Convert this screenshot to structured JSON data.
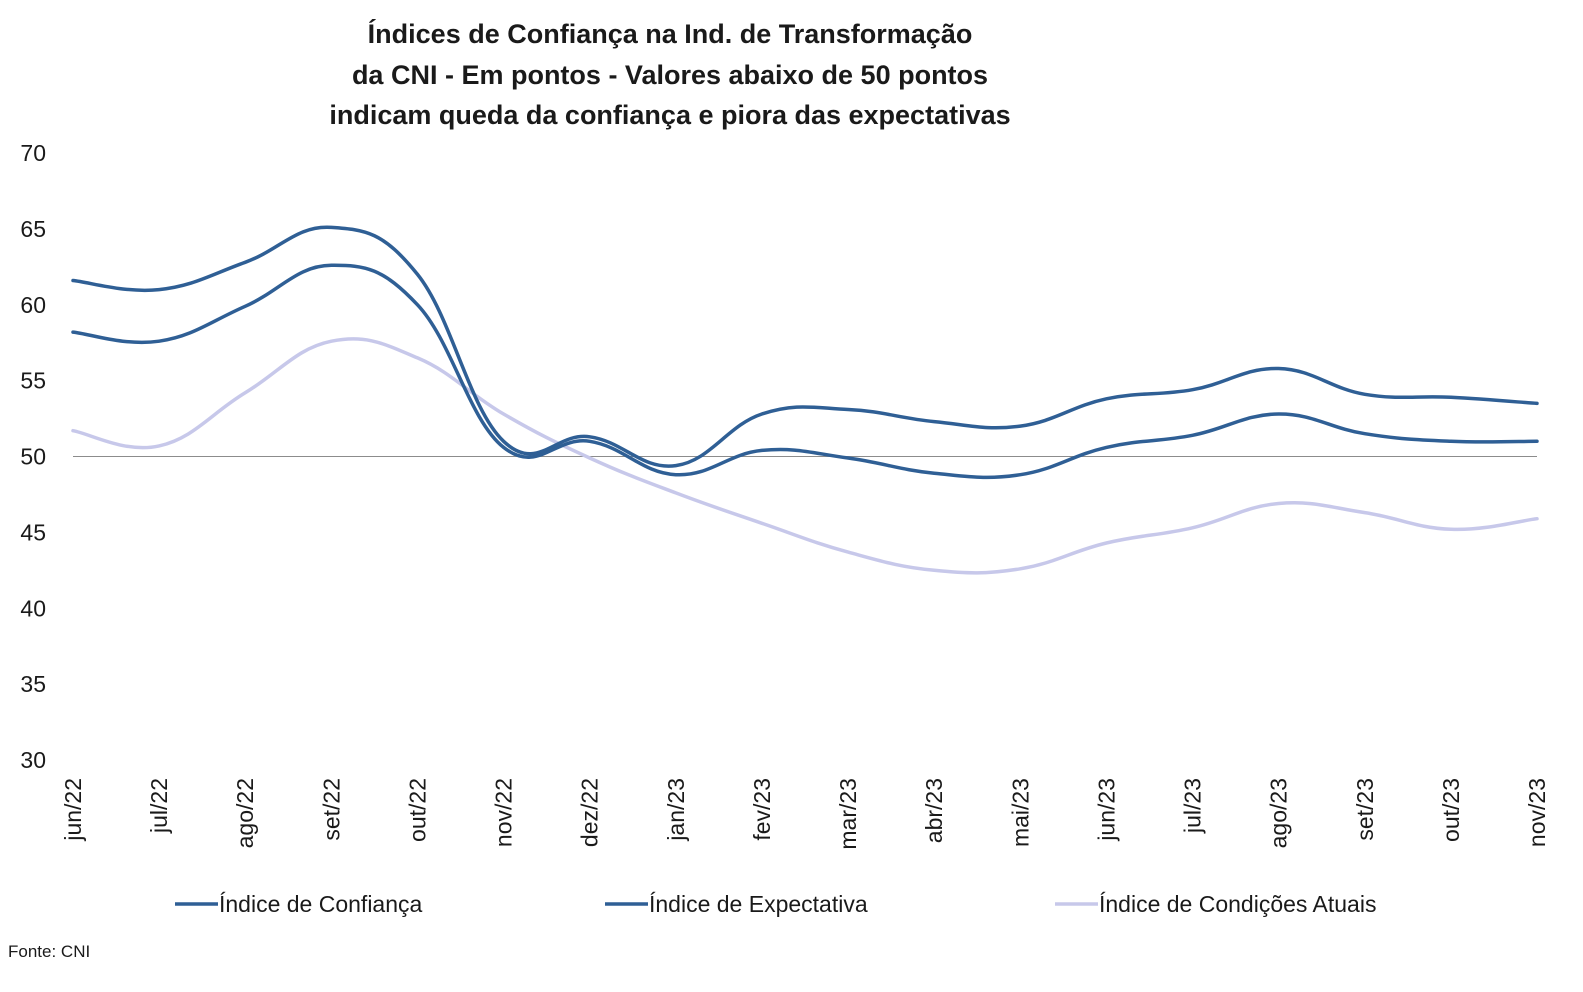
{
  "chart_data": {
    "type": "line",
    "title_lines": [
      "Índices de Confiança na Ind. de Transformação",
      "da CNI - Em pontos - Valores abaixo de 50 pontos",
      "indicam queda da confiança e piora das expectativas"
    ],
    "xlabel": "",
    "ylabel": "",
    "ylim": [
      30,
      70
    ],
    "yticks": [
      30,
      35,
      40,
      45,
      50,
      55,
      60,
      65,
      70
    ],
    "reference_line": 50,
    "grid": false,
    "legend_position": "bottom",
    "categories": [
      "jun/22",
      "jul/22",
      "ago/22",
      "set/22",
      "out/22",
      "nov/22",
      "dez/22",
      "jan/23",
      "fev/23",
      "mar/23",
      "abr/23",
      "mai/23",
      "jun/23",
      "jul/23",
      "ago/23",
      "set/23",
      "out/23",
      "nov/23"
    ],
    "series": [
      {
        "name": "Índice de Confiança",
        "color": "#2f5f95",
        "values": [
          61.6,
          61.0,
          62.8,
          65.1,
          62.0,
          51.0,
          51.3,
          49.4,
          52.8,
          53.1,
          52.3,
          52.0,
          53.8,
          54.4,
          55.8,
          54.1,
          53.9,
          53.5
        ]
      },
      {
        "name": "Índice de Expectativa",
        "color": "#2f5f95",
        "values": [
          58.2,
          57.6,
          59.9,
          62.6,
          60.0,
          50.6,
          51.0,
          48.8,
          50.4,
          49.9,
          48.9,
          48.8,
          50.6,
          51.4,
          52.8,
          51.5,
          51.0,
          51.0
        ]
      },
      {
        "name": "Índice de Condições Atuais",
        "color": "#c7c8ea",
        "values": [
          51.7,
          50.7,
          54.2,
          57.6,
          56.5,
          52.8,
          49.9,
          47.6,
          45.6,
          43.7,
          42.5,
          42.6,
          44.3,
          45.3,
          46.9,
          46.3,
          45.2,
          45.9
        ]
      }
    ],
    "source": "Fonte: CNI"
  }
}
